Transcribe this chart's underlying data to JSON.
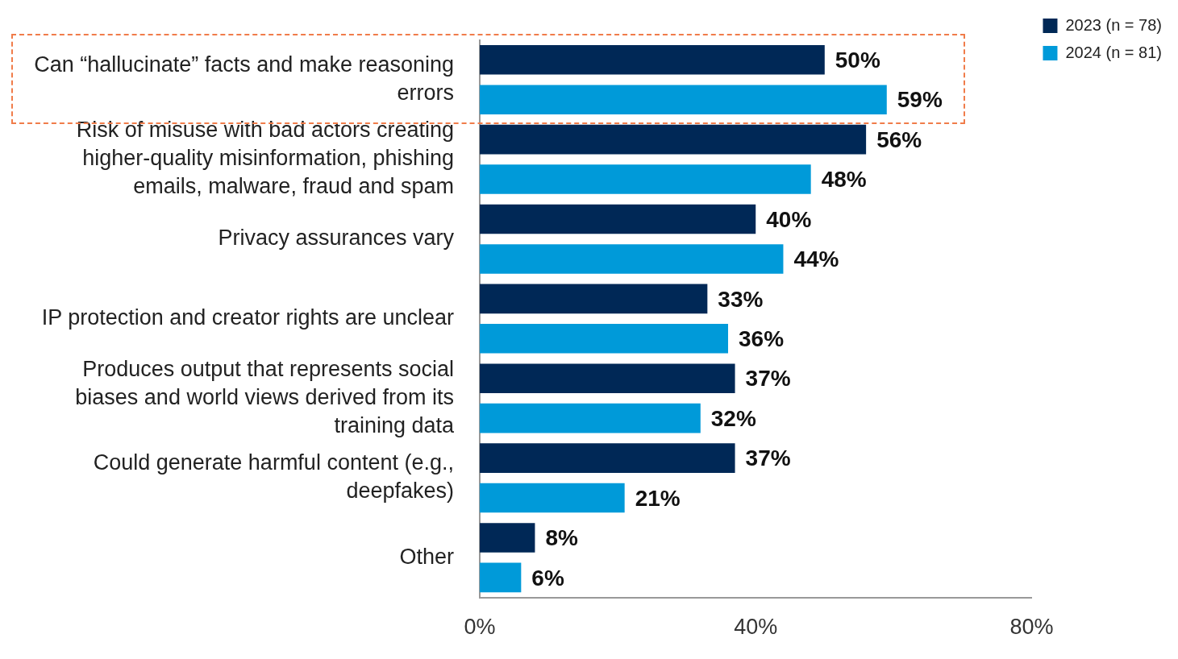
{
  "chart_data": {
    "type": "bar",
    "orientation": "horizontal",
    "categories": [
      "Can “hallucinate” facts and make reasoning errors",
      "Risk of misuse with bad actors creating higher-quality misinformation, phishing emails, malware, fraud and spam",
      "Privacy assurances vary",
      "IP protection and creator rights are unclear",
      "Produces output that represents social biases and world views derived from its training data",
      "Could generate harmful content (e.g., deepfakes)",
      "Other"
    ],
    "series": [
      {
        "name": "2023 (n = 78)",
        "color": "#002856",
        "values": [
          50,
          56,
          40,
          33,
          37,
          37,
          8
        ]
      },
      {
        "name": "2024 (n = 81)",
        "color": "#009ad9",
        "values": [
          59,
          48,
          44,
          36,
          32,
          21,
          6
        ]
      }
    ],
    "xlim": [
      0,
      80
    ],
    "xticks": [
      {
        "value": 0,
        "label": "0%"
      },
      {
        "value": 40,
        "label": "40%"
      },
      {
        "value": 80,
        "label": "80%"
      }
    ],
    "value_labels": [
      [
        "50%",
        "56%",
        "40%",
        "33%",
        "37%",
        "37%",
        "8%"
      ],
      [
        "59%",
        "48%",
        "44%",
        "36%",
        "32%",
        "21%",
        "6%"
      ]
    ],
    "grid": false,
    "legend": "top right"
  }
}
